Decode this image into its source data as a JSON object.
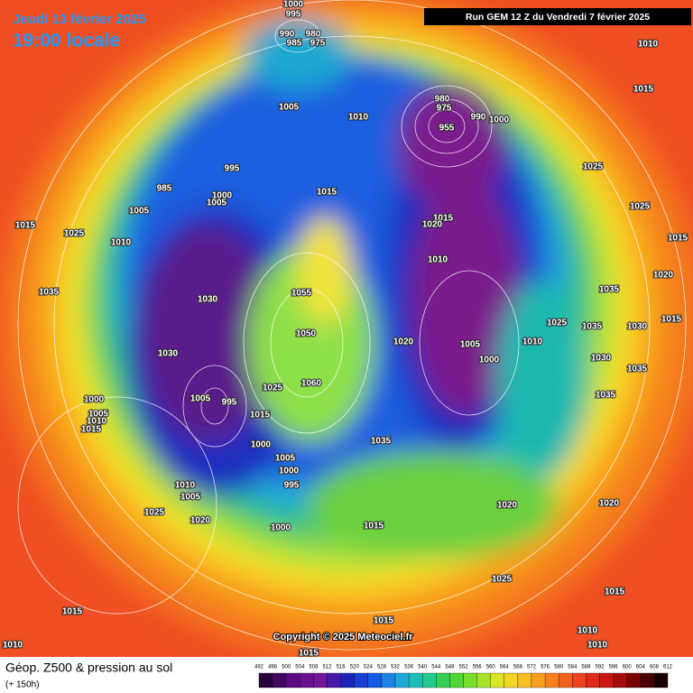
{
  "header": {
    "date": "Jeudi 13 février 2025",
    "time": "19:00 locale",
    "run": "Run GEM 12 Z du Vendredi 7 février 2025"
  },
  "copyright": "Copyright © 2025 Meteociel.fr",
  "footer": {
    "title": "Géop. Z500 & pression au sol",
    "lead": "(+ 150h)"
  },
  "colorbar": {
    "levels": [
      492,
      496,
      500,
      504,
      508,
      512,
      516,
      520,
      524,
      528,
      532,
      536,
      540,
      544,
      548,
      552,
      556,
      560,
      564,
      568,
      572,
      576,
      580,
      584,
      588,
      592,
      596,
      600,
      604,
      608,
      612
    ]
  },
  "isobar_labels": [
    1000,
    995,
    990,
    980,
    985,
    975,
    1010,
    1015,
    1005,
    1010,
    980,
    975,
    955,
    990,
    1000,
    995,
    985,
    1000,
    1005,
    1005,
    1015,
    1025,
    1025,
    1015,
    1025,
    1015,
    1020,
    1010,
    1010,
    1015,
    1020,
    1035,
    1030,
    1055,
    1035,
    1015,
    1025,
    1035,
    1030,
    1050,
    1020,
    1005,
    1010,
    1030,
    1000,
    1030,
    1035,
    1060,
    1025,
    1005,
    995,
    1035,
    1000,
    1015,
    1005,
    1010,
    1015,
    1035,
    1000,
    1005,
    1000,
    995,
    1010,
    1005,
    1020,
    1020,
    1025,
    1020,
    1000,
    1015,
    1025,
    1015,
    1015,
    1015,
    1010,
    1010,
    1010,
    1015
  ]
}
